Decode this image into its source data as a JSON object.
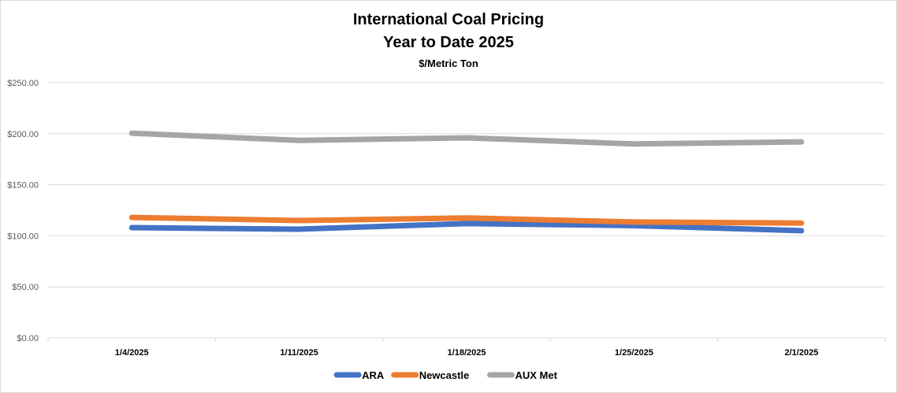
{
  "chart_data": {
    "type": "line",
    "title": "International Coal Pricing",
    "subtitle": "Year to Date 2025",
    "units": "$/Metric Ton",
    "categories": [
      "1/4/2025",
      "1/11/2025",
      "1/18/2025",
      "1/25/2025",
      "2/1/2025"
    ],
    "y_ticks": [
      "$0.00",
      "$50.00",
      "$100.00",
      "$150.00",
      "$200.00",
      "$250.00"
    ],
    "ylim": [
      0,
      250
    ],
    "grid": true,
    "legend_position": "bottom",
    "series": [
      {
        "name": "ARA",
        "color": "#4472c4",
        "values": [
          108,
          106.5,
          112,
          110,
          105
        ]
      },
      {
        "name": "Newcastle",
        "color": "#ed7d31",
        "values": [
          118,
          115,
          117.5,
          113.5,
          112.5
        ]
      },
      {
        "name": "AUX Met",
        "color": "#a5a5a5",
        "values": [
          200.5,
          193.5,
          196,
          190,
          192
        ]
      }
    ]
  }
}
